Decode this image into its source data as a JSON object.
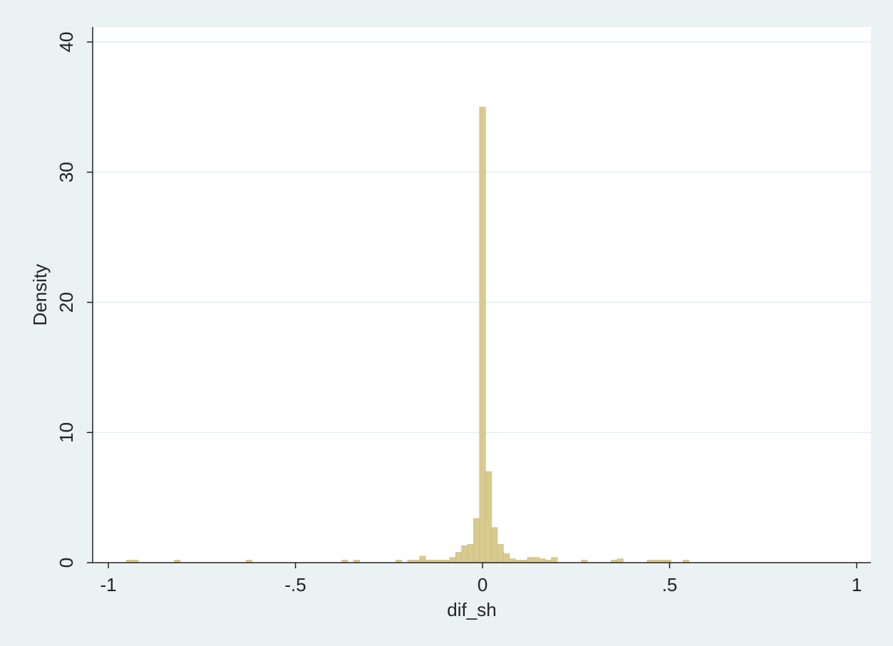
{
  "chart_data": {
    "type": "histogram",
    "x_label": "dif_sh",
    "y_label": "Density",
    "bins": [
      -0.968,
      -0.952,
      -0.936,
      -0.92,
      -0.904,
      -0.888,
      -0.872,
      -0.856,
      -0.84,
      -0.824,
      -0.808,
      -0.792,
      -0.776,
      -0.76,
      -0.744,
      -0.728,
      -0.712,
      -0.696,
      -0.68,
      -0.664,
      -0.648,
      -0.632,
      -0.616,
      -0.6,
      -0.584,
      -0.568,
      -0.552,
      -0.536,
      -0.52,
      -0.504,
      -0.488,
      -0.472,
      -0.456,
      -0.44,
      -0.424,
      -0.408,
      -0.392,
      -0.376,
      -0.36,
      -0.344,
      -0.328,
      -0.312,
      -0.296,
      -0.28,
      -0.264,
      -0.248,
      -0.232,
      -0.216,
      -0.2,
      -0.184,
      -0.168,
      -0.152,
      -0.136,
      -0.12,
      -0.104,
      -0.088,
      -0.072,
      -0.056,
      -0.04,
      -0.024,
      -0.008,
      0.008,
      0.024,
      0.04,
      0.056,
      0.072,
      0.088,
      0.104,
      0.12,
      0.136,
      0.152,
      0.168,
      0.184,
      0.2,
      0.216,
      0.232,
      0.248,
      0.264,
      0.28,
      0.296,
      0.312,
      0.328,
      0.344,
      0.36,
      0.376,
      0.392,
      0.408,
      0.424,
      0.44,
      0.456,
      0.472,
      0.488,
      0.504,
      0.52,
      0.536,
      0.552
    ],
    "values": [
      0,
      0.2,
      0.2,
      0,
      0,
      0,
      0,
      0,
      0,
      0.2,
      0,
      0,
      0,
      0,
      0,
      0,
      0,
      0,
      0,
      0,
      0,
      0.2,
      0,
      0,
      0,
      0,
      0,
      0,
      0,
      0,
      0,
      0,
      0,
      0,
      0,
      0,
      0,
      0.2,
      0,
      0.2,
      0,
      0,
      0,
      0,
      0,
      0,
      0.2,
      0,
      0.2,
      0.2,
      0.5,
      0.2,
      0.2,
      0.2,
      0.2,
      0.4,
      0.8,
      1.3,
      1.4,
      3.4,
      35,
      7,
      2.7,
      1.4,
      0.7,
      0.3,
      0.2,
      0.2,
      0.4,
      0.4,
      0.3,
      0.2,
      0.4,
      0,
      0,
      0,
      0,
      0.2,
      0,
      0,
      0,
      0,
      0.2,
      0.3,
      0,
      0,
      0,
      0,
      0.2,
      0.2,
      0.2,
      0.2,
      0,
      0,
      0.2
    ],
    "color": "#d9cb8e",
    "xlim": [
      -1.042,
      1.038
    ],
    "xticks": [
      -1,
      {
        "value": -0.5,
        "label": "-.5"
      },
      0,
      {
        "value": 0.5,
        "label": ".5"
      },
      1
    ],
    "ylim": [
      0,
      41.15
    ],
    "yticks": [
      0,
      10,
      20,
      30,
      40
    ],
    "grid": true
  }
}
